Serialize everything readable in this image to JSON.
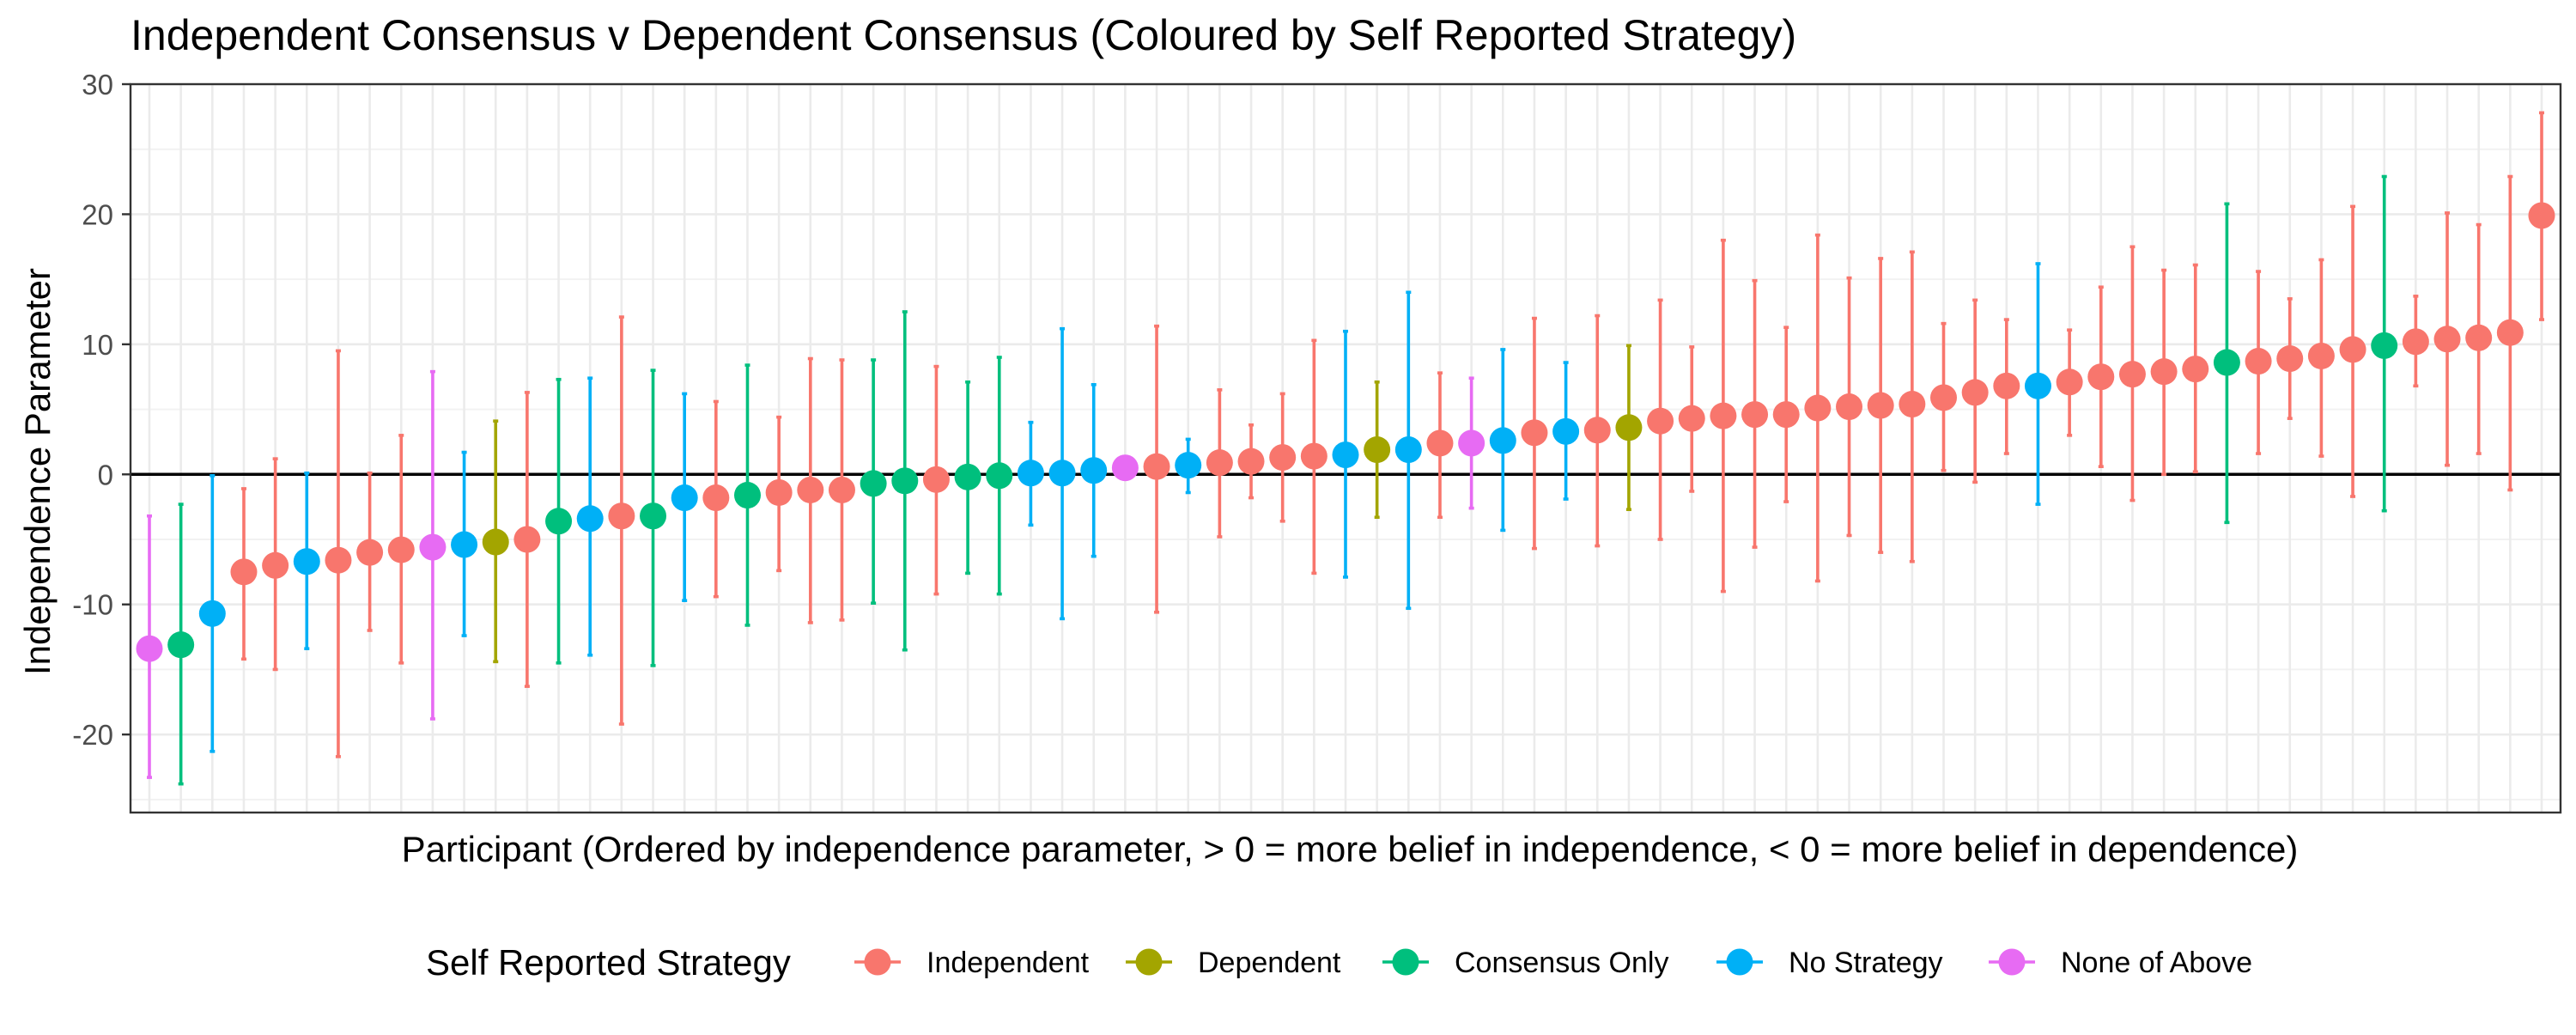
{
  "chart_data": {
    "type": "scatter",
    "title": "Independent Consensus v Dependent Consensus (Coloured by Self Reported Strategy)",
    "xlabel": "Participant (Ordered by independence parameter, > 0 = more belief in independence, < 0 = more belief in dependence)",
    "ylabel": "Independence Parameter",
    "ylim": [
      -26,
      30
    ],
    "y_ticks": [
      -20,
      -10,
      0,
      10,
      20,
      30
    ],
    "y_tick_labels": [
      "-20",
      "-10",
      "0",
      "10",
      "20",
      "30"
    ],
    "grid": true,
    "reference_line_y": 0,
    "legend_title": "Self Reported Strategy",
    "legend_position": "bottom",
    "groups": [
      {
        "name": "Independent",
        "color": "#F8766D"
      },
      {
        "name": "Dependent",
        "color": "#A3A500"
      },
      {
        "name": "Consensus Only",
        "color": "#00BF7D"
      },
      {
        "name": "No Strategy",
        "color": "#00B0F6"
      },
      {
        "name": "None of Above",
        "color": "#E76BF3"
      }
    ],
    "points": [
      {
        "x": 1,
        "group": "None of Above",
        "y": -13.4,
        "lower": -23.3,
        "upper": -3.2
      },
      {
        "x": 2,
        "group": "Consensus Only",
        "y": -13.1,
        "lower": -23.8,
        "upper": -2.3
      },
      {
        "x": 3,
        "group": "No Strategy",
        "y": -10.7,
        "lower": -21.3,
        "upper": -0.1
      },
      {
        "x": 4,
        "group": "Independent",
        "y": -7.5,
        "lower": -14.2,
        "upper": -1.1
      },
      {
        "x": 5,
        "group": "Independent",
        "y": -7.0,
        "lower": -15.0,
        "upper": 1.2
      },
      {
        "x": 6,
        "group": "No Strategy",
        "y": -6.7,
        "lower": -13.4,
        "upper": 0.1
      },
      {
        "x": 7,
        "group": "Independent",
        "y": -6.6,
        "lower": -21.7,
        "upper": 9.5
      },
      {
        "x": 8,
        "group": "Independent",
        "y": -6.0,
        "lower": -12.0,
        "upper": 0.1
      },
      {
        "x": 9,
        "group": "Independent",
        "y": -5.8,
        "lower": -14.5,
        "upper": 3.0
      },
      {
        "x": 10,
        "group": "None of Above",
        "y": -5.6,
        "lower": -18.8,
        "upper": 7.9
      },
      {
        "x": 11,
        "group": "No Strategy",
        "y": -5.4,
        "lower": -12.4,
        "upper": 1.7
      },
      {
        "x": 12,
        "group": "Dependent",
        "y": -5.2,
        "lower": -14.4,
        "upper": 4.1
      },
      {
        "x": 13,
        "group": "Independent",
        "y": -5.0,
        "lower": -16.3,
        "upper": 6.3
      },
      {
        "x": 14,
        "group": "Consensus Only",
        "y": -3.6,
        "lower": -14.5,
        "upper": 7.3
      },
      {
        "x": 15,
        "group": "No Strategy",
        "y": -3.4,
        "lower": -13.9,
        "upper": 7.4
      },
      {
        "x": 16,
        "group": "Independent",
        "y": -3.2,
        "lower": -19.2,
        "upper": 12.1
      },
      {
        "x": 17,
        "group": "Consensus Only",
        "y": -3.2,
        "lower": -14.7,
        "upper": 8.0
      },
      {
        "x": 18,
        "group": "No Strategy",
        "y": -1.8,
        "lower": -9.7,
        "upper": 6.2
      },
      {
        "x": 19,
        "group": "Independent",
        "y": -1.8,
        "lower": -9.4,
        "upper": 5.6
      },
      {
        "x": 20,
        "group": "Consensus Only",
        "y": -1.6,
        "lower": -11.6,
        "upper": 8.4
      },
      {
        "x": 21,
        "group": "Independent",
        "y": -1.4,
        "lower": -7.4,
        "upper": 4.4
      },
      {
        "x": 22,
        "group": "Independent",
        "y": -1.2,
        "lower": -11.4,
        "upper": 8.9
      },
      {
        "x": 23,
        "group": "Independent",
        "y": -1.2,
        "lower": -11.2,
        "upper": 8.8
      },
      {
        "x": 24,
        "group": "Consensus Only",
        "y": -0.7,
        "lower": -9.9,
        "upper": 8.8
      },
      {
        "x": 25,
        "group": "Consensus Only",
        "y": -0.5,
        "lower": -13.5,
        "upper": 12.5
      },
      {
        "x": 26,
        "group": "Independent",
        "y": -0.4,
        "lower": -9.2,
        "upper": 8.3
      },
      {
        "x": 27,
        "group": "Consensus Only",
        "y": -0.2,
        "lower": -7.6,
        "upper": 7.1
      },
      {
        "x": 28,
        "group": "Consensus Only",
        "y": -0.1,
        "lower": -9.2,
        "upper": 9.0
      },
      {
        "x": 29,
        "group": "No Strategy",
        "y": 0.1,
        "lower": -3.9,
        "upper": 4.0
      },
      {
        "x": 30,
        "group": "No Strategy",
        "y": 0.1,
        "lower": -11.1,
        "upper": 11.2
      },
      {
        "x": 31,
        "group": "No Strategy",
        "y": 0.3,
        "lower": -6.3,
        "upper": 6.9
      },
      {
        "x": 32,
        "group": "None of Above",
        "y": 0.5,
        "lower": 0.2,
        "upper": 0.8
      },
      {
        "x": 33,
        "group": "Independent",
        "y": 0.6,
        "lower": -10.6,
        "upper": 11.4
      },
      {
        "x": 34,
        "group": "No Strategy",
        "y": 0.7,
        "lower": -1.4,
        "upper": 2.7
      },
      {
        "x": 35,
        "group": "Independent",
        "y": 0.9,
        "lower": -4.8,
        "upper": 6.5
      },
      {
        "x": 36,
        "group": "Independent",
        "y": 1.0,
        "lower": -1.8,
        "upper": 3.8
      },
      {
        "x": 37,
        "group": "Independent",
        "y": 1.3,
        "lower": -3.6,
        "upper": 6.2
      },
      {
        "x": 38,
        "group": "Independent",
        "y": 1.4,
        "lower": -7.6,
        "upper": 10.3
      },
      {
        "x": 39,
        "group": "No Strategy",
        "y": 1.5,
        "lower": -7.9,
        "upper": 11.0
      },
      {
        "x": 40,
        "group": "Dependent",
        "y": 1.9,
        "lower": -3.3,
        "upper": 7.1
      },
      {
        "x": 41,
        "group": "No Strategy",
        "y": 1.9,
        "lower": -10.3,
        "upper": 14.0
      },
      {
        "x": 42,
        "group": "Independent",
        "y": 2.4,
        "lower": -3.3,
        "upper": 7.8
      },
      {
        "x": 43,
        "group": "None of Above",
        "y": 2.4,
        "lower": -2.6,
        "upper": 7.4
      },
      {
        "x": 44,
        "group": "No Strategy",
        "y": 2.6,
        "lower": -4.3,
        "upper": 9.6
      },
      {
        "x": 45,
        "group": "Independent",
        "y": 3.2,
        "lower": -5.7,
        "upper": 12.0
      },
      {
        "x": 46,
        "group": "No Strategy",
        "y": 3.3,
        "lower": -1.9,
        "upper": 8.6
      },
      {
        "x": 47,
        "group": "Independent",
        "y": 3.4,
        "lower": -5.5,
        "upper": 12.2
      },
      {
        "x": 48,
        "group": "Dependent",
        "y": 3.6,
        "lower": -2.7,
        "upper": 9.9
      },
      {
        "x": 49,
        "group": "Independent",
        "y": 4.1,
        "lower": -5.0,
        "upper": 13.4
      },
      {
        "x": 50,
        "group": "Independent",
        "y": 4.3,
        "lower": -1.3,
        "upper": 9.8
      },
      {
        "x": 51,
        "group": "Independent",
        "y": 4.5,
        "lower": -9.0,
        "upper": 18.0
      },
      {
        "x": 52,
        "group": "Independent",
        "y": 4.6,
        "lower": -5.6,
        "upper": 14.9
      },
      {
        "x": 53,
        "group": "Independent",
        "y": 4.6,
        "lower": -2.1,
        "upper": 11.3
      },
      {
        "x": 54,
        "group": "Independent",
        "y": 5.1,
        "lower": -8.2,
        "upper": 18.4
      },
      {
        "x": 55,
        "group": "Independent",
        "y": 5.2,
        "lower": -4.7,
        "upper": 15.1
      },
      {
        "x": 56,
        "group": "Independent",
        "y": 5.3,
        "lower": -6.0,
        "upper": 16.6
      },
      {
        "x": 57,
        "group": "Independent",
        "y": 5.4,
        "lower": -6.7,
        "upper": 17.1
      },
      {
        "x": 58,
        "group": "Independent",
        "y": 5.9,
        "lower": 0.3,
        "upper": 11.6
      },
      {
        "x": 59,
        "group": "Independent",
        "y": 6.3,
        "lower": -0.6,
        "upper": 13.4
      },
      {
        "x": 60,
        "group": "Independent",
        "y": 6.8,
        "lower": 1.6,
        "upper": 11.9
      },
      {
        "x": 61,
        "group": "No Strategy",
        "y": 6.8,
        "lower": -2.3,
        "upper": 16.2
      },
      {
        "x": 62,
        "group": "Independent",
        "y": 7.1,
        "lower": 3.0,
        "upper": 11.1
      },
      {
        "x": 63,
        "group": "Independent",
        "y": 7.5,
        "lower": 0.6,
        "upper": 14.4
      },
      {
        "x": 64,
        "group": "Independent",
        "y": 7.7,
        "lower": -2.0,
        "upper": 17.5
      },
      {
        "x": 65,
        "group": "Independent",
        "y": 7.9,
        "lower": 0.0,
        "upper": 15.7
      },
      {
        "x": 66,
        "group": "Independent",
        "y": 8.1,
        "lower": 0.2,
        "upper": 16.1
      },
      {
        "x": 67,
        "group": "Consensus Only",
        "y": 8.6,
        "lower": -3.7,
        "upper": 20.8
      },
      {
        "x": 68,
        "group": "Independent",
        "y": 8.7,
        "lower": 1.6,
        "upper": 15.6
      },
      {
        "x": 69,
        "group": "Independent",
        "y": 8.9,
        "lower": 4.3,
        "upper": 13.5
      },
      {
        "x": 70,
        "group": "Independent",
        "y": 9.1,
        "lower": 1.4,
        "upper": 16.5
      },
      {
        "x": 71,
        "group": "Independent",
        "y": 9.6,
        "lower": -1.7,
        "upper": 20.6
      },
      {
        "x": 72,
        "group": "Consensus Only",
        "y": 9.9,
        "lower": -2.8,
        "upper": 22.9
      },
      {
        "x": 73,
        "group": "Independent",
        "y": 10.2,
        "lower": 6.8,
        "upper": 13.7
      },
      {
        "x": 74,
        "group": "Independent",
        "y": 10.4,
        "lower": 0.7,
        "upper": 20.1
      },
      {
        "x": 75,
        "group": "Independent",
        "y": 10.5,
        "lower": 1.6,
        "upper": 19.2
      },
      {
        "x": 76,
        "group": "Independent",
        "y": 10.9,
        "lower": -1.2,
        "upper": 22.9
      },
      {
        "x": 77,
        "group": "Independent",
        "y": 19.9,
        "lower": 11.9,
        "upper": 27.8
      }
    ]
  }
}
